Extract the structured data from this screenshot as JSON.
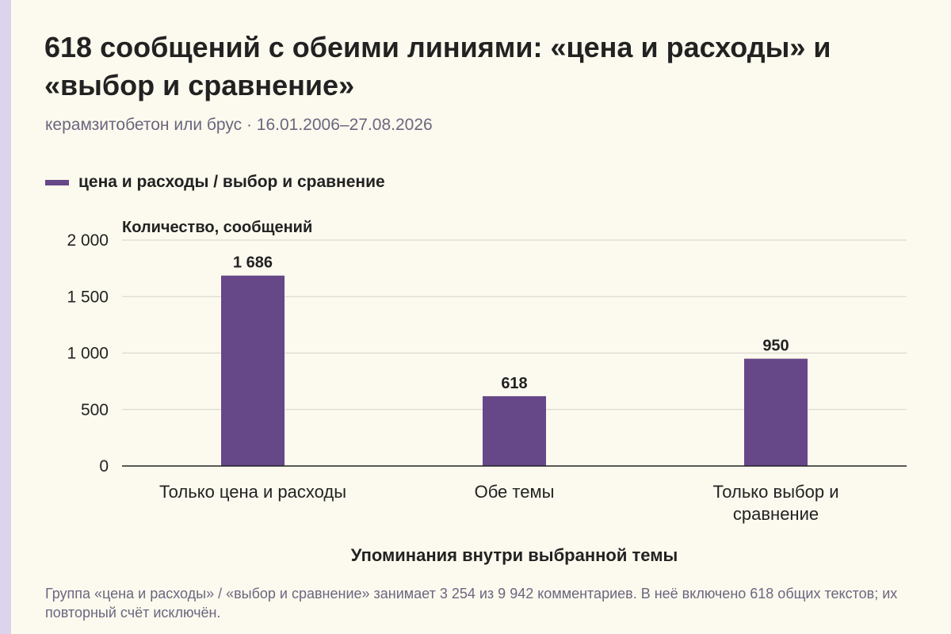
{
  "header": {
    "title": "618 сообщений с обеими линиями: «цена и расходы» и «выбор и сравнение»",
    "subtitle": "керамзитобетон или брус · 16.01.2006–27.08.2026"
  },
  "colors": {
    "bar": "#664788",
    "background": "#fcfaee",
    "grid": "#d5d2c8",
    "axis": "#222222",
    "stripe": "#dcd3ec"
  },
  "chart_data": {
    "type": "bar",
    "title": "618 сообщений с обеими линиями: «цена и расходы» и «выбор и сравнение»",
    "subtitle": "керамзитобетон или брус · 16.01.2006–27.08.2026",
    "categories": [
      [
        "Только цена и расходы"
      ],
      [
        "Обе темы"
      ],
      [
        "Только выбор и",
        "сравнение"
      ]
    ],
    "series": [
      {
        "name": "цена и расходы / выбор и сравнение",
        "values": [
          1686,
          618,
          950
        ]
      }
    ],
    "value_labels": [
      "1 686",
      "618",
      "950"
    ],
    "ylim": [
      0,
      2000
    ],
    "yticks": [
      0,
      500,
      1000,
      1500,
      2000
    ],
    "ytick_labels": [
      "0",
      "500",
      "1 000",
      "1 500",
      "2 000"
    ],
    "ylabel": "Количество, сообщений",
    "xlabel": "Упоминания внутри выбранной темы",
    "grid": true,
    "legend": "top-left"
  },
  "footnote": "Группа «цена и расходы» / «выбор и сравнение» занимает 3 254 из 9 942 комментариев. В неё включено 618 общих текстов; их повторный счёт исключён."
}
